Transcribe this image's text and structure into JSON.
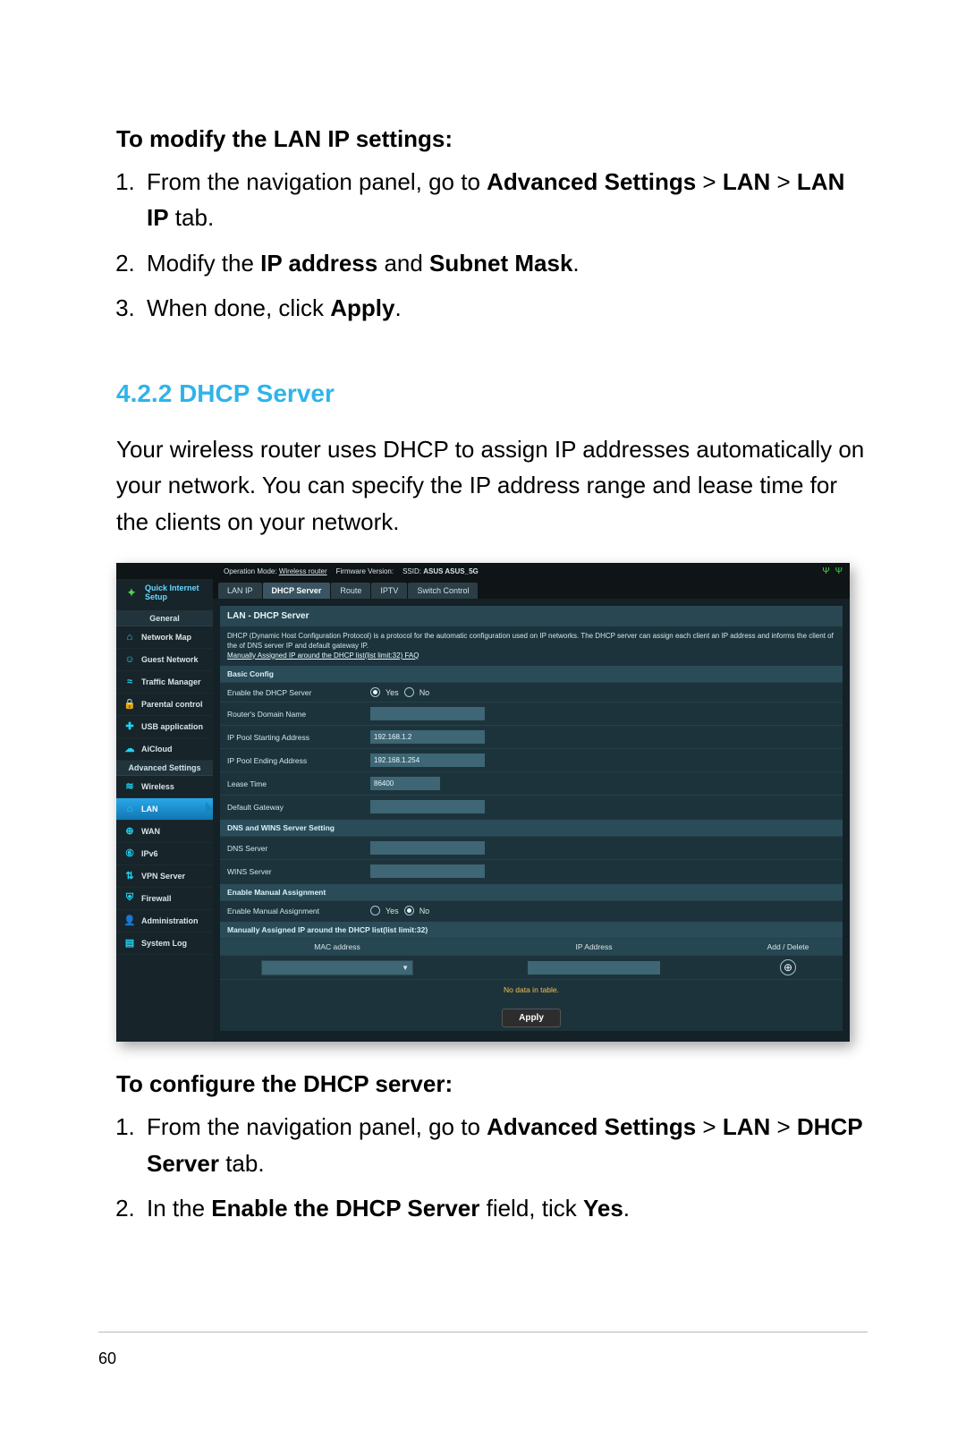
{
  "pageNumber": "60",
  "modify": {
    "heading": "To modify the LAN IP settings:",
    "steps": [
      {
        "pre": "From the navigation panel, go to ",
        "b1": "Advanced Settings",
        "mid": " > ",
        "b2": "LAN",
        "mid2": " > ",
        "b3": "LAN IP",
        "post": " tab."
      },
      {
        "pre": "Modify the ",
        "b1": "IP address",
        "mid": " and ",
        "b2": "Subnet Mask",
        "post": "."
      },
      {
        "pre": "When done, click ",
        "b1": "Apply",
        "post": "."
      }
    ]
  },
  "section": {
    "num": "4.2.2",
    "title": "DHCP Server"
  },
  "para": "Your wireless router uses DHCP to assign IP addresses automatically on your network. You can specify the IP address range and lease time for the clients on your network.",
  "shot": {
    "topbar": {
      "opmode_lbl": "Operation Mode:",
      "opmode": "Wireless router",
      "fw_lbl": "Firmware Version:",
      "ssid_lbl": "SSID:",
      "ssid": "ASUS  ASUS_5G"
    },
    "qis": {
      "line1": "Quick Internet",
      "line2": "Setup"
    },
    "navhdr1": "General",
    "gen": [
      {
        "label": "Network Map",
        "icon": "⌂"
      },
      {
        "label": "Guest Network",
        "icon": "☺"
      },
      {
        "label": "Traffic Manager",
        "icon": "≈"
      },
      {
        "label": "Parental control",
        "icon": "🔒"
      },
      {
        "label": "USB application",
        "icon": "✚"
      },
      {
        "label": "AiCloud",
        "icon": "☁"
      }
    ],
    "navhdr2": "Advanced Settings",
    "adv": [
      {
        "label": "Wireless",
        "icon": "≋"
      },
      {
        "label": "LAN",
        "icon": "⌂",
        "active": true
      },
      {
        "label": "WAN",
        "icon": "⊕"
      },
      {
        "label": "IPv6",
        "icon": "⑥"
      },
      {
        "label": "VPN Server",
        "icon": "⇅"
      },
      {
        "label": "Firewall",
        "icon": "⛨"
      },
      {
        "label": "Administration",
        "icon": "👤"
      },
      {
        "label": "System Log",
        "icon": "▤"
      }
    ],
    "tabs": [
      "LAN IP",
      "DHCP Server",
      "Route",
      "IPTV",
      "Switch Control"
    ],
    "activeTab": 1,
    "panelTitle": "LAN - DHCP Server",
    "desc1": "DHCP (Dynamic Host Configuration Protocol) is a protocol for the automatic configuration used on IP networks. The DHCP server can assign each client an IP address and informs the client of the of DNS server IP and default gateway IP.",
    "desc2": "Manually Assigned IP around the DHCP list(list limit:32) FAQ",
    "basicHdr": "Basic Config",
    "rows": {
      "enable": {
        "label": "Enable the DHCP Server",
        "yes": "Yes",
        "no": "No"
      },
      "domain": {
        "label": "Router's Domain Name",
        "val": ""
      },
      "start": {
        "label": "IP Pool Starting Address",
        "val": "192.168.1.2"
      },
      "end": {
        "label": "IP Pool Ending Address",
        "val": "192.168.1.254"
      },
      "lease": {
        "label": "Lease Time",
        "val": "86400"
      },
      "gw": {
        "label": "Default Gateway",
        "val": ""
      }
    },
    "dnsHdr": "DNS and WINS Server Setting",
    "dns": {
      "label": "DNS Server",
      "val": ""
    },
    "wins": {
      "label": "WINS Server",
      "val": ""
    },
    "manHdr": "Enable Manual Assignment",
    "man": {
      "label": "Enable Manual Assignment",
      "yes": "Yes",
      "no": "No"
    },
    "listHdr": "Manually Assigned IP around the DHCP list(list limit:32)",
    "cols": {
      "mac": "MAC address",
      "ip": "IP Address",
      "add": "Add / Delete"
    },
    "nodata": "No data in table.",
    "apply": "Apply"
  },
  "configure": {
    "heading": "To configure the DHCP server:",
    "steps": [
      {
        "pre": "From the navigation panel, go to ",
        "b1": "Advanced Settings",
        "mid": " > ",
        "b2": "LAN",
        "mid2": " > ",
        "b3": "DHCP Server",
        "post": " tab."
      },
      {
        "pre": "In the ",
        "b1": "Enable the DHCP Server",
        "mid": " field, tick ",
        "b2": "Yes",
        "post": "."
      }
    ]
  }
}
